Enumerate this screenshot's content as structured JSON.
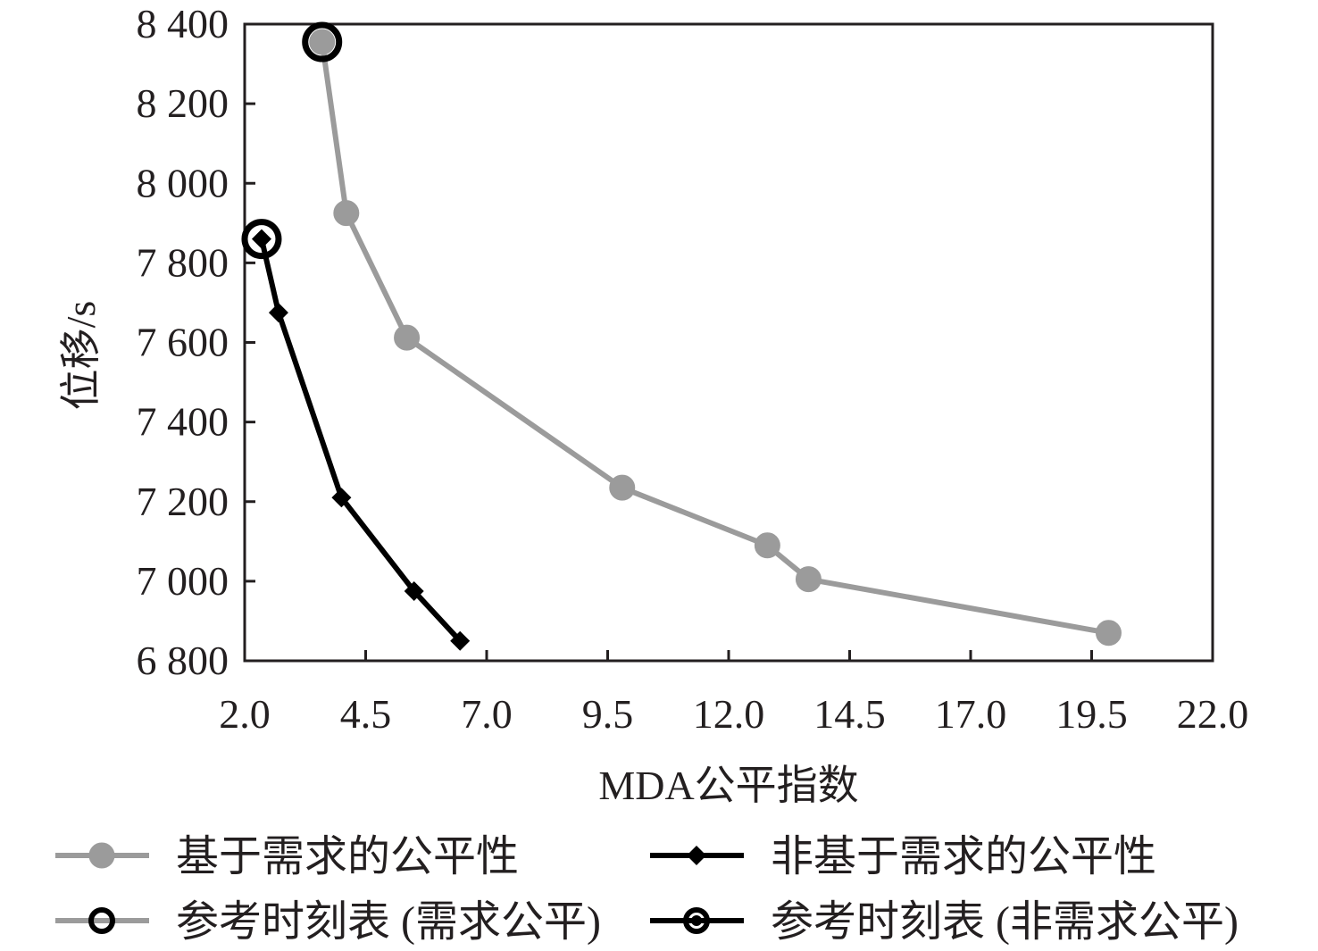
{
  "chart_data": {
    "type": "line",
    "xlabel": "MDA公平指数",
    "ylabel": "位移/s",
    "xlim": [
      2.0,
      22.0
    ],
    "ylim": [
      6800,
      8400
    ],
    "x_ticks": [
      2.0,
      4.5,
      7.0,
      9.5,
      12.0,
      14.5,
      17.0,
      19.5,
      22.0
    ],
    "x_tick_labels": [
      "2.0",
      "4.5",
      "7.0",
      "9.5",
      "12.0",
      "14.5",
      "17.0",
      "19.5",
      "22.0"
    ],
    "y_ticks": [
      6800,
      7000,
      7200,
      7400,
      7600,
      7800,
      8000,
      8200,
      8400
    ],
    "y_tick_labels": [
      "6 800",
      "7 000",
      "7 200",
      "7 400",
      "7 600",
      "7 800",
      "8 000",
      "8 200",
      "8 400"
    ],
    "grid": false,
    "legend_position": "bottom",
    "series": [
      {
        "name": "基于需求的公平性",
        "color": "#9b9b9b",
        "marker": "circle",
        "points": [
          {
            "x": 3.6,
            "y": 8355
          },
          {
            "x": 4.1,
            "y": 7925
          },
          {
            "x": 5.35,
            "y": 7612
          },
          {
            "x": 9.8,
            "y": 7235
          },
          {
            "x": 12.8,
            "y": 7090
          },
          {
            "x": 13.65,
            "y": 7005
          },
          {
            "x": 19.85,
            "y": 6870
          }
        ]
      },
      {
        "name": "非基于需求的公平性",
        "color": "#000000",
        "marker": "diamond",
        "points": [
          {
            "x": 2.35,
            "y": 7860
          },
          {
            "x": 2.7,
            "y": 7675
          },
          {
            "x": 4.0,
            "y": 7210
          },
          {
            "x": 5.5,
            "y": 6975
          },
          {
            "x": 6.45,
            "y": 6850
          }
        ]
      },
      {
        "name": "参考时刻表 (需求公平)",
        "color": "#000000",
        "marker": "ring",
        "points": [
          {
            "x": 3.6,
            "y": 8355
          }
        ]
      },
      {
        "name": "参考时刻表 (非需求公平)",
        "color": "#000000",
        "marker": "ring",
        "points": [
          {
            "x": 2.35,
            "y": 7860
          }
        ]
      }
    ]
  }
}
